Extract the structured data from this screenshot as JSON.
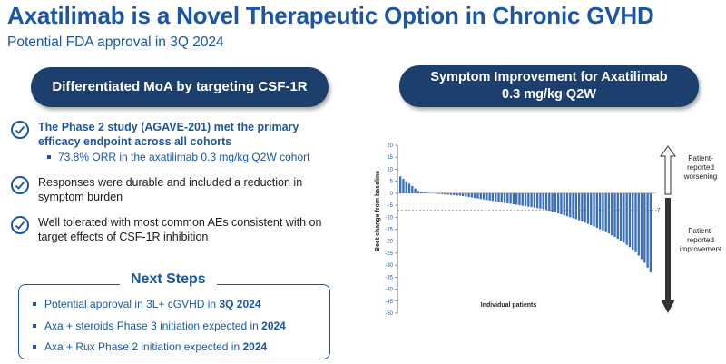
{
  "header": {
    "title": "Axatilimab is a Novel Therapeutic Option in Chronic GVHD",
    "subtitle": "Potential FDA approval in 3Q 2024"
  },
  "left_panel": {
    "pill": "Differentiated MoA by targeting CSF-1R",
    "bullets": [
      {
        "text": "The Phase 2 study (AGAVE-201) met the primary efficacy endpoint across all cohorts",
        "sub": "73.8% ORR in the axatilimab 0.3 mg/kg Q2W cohort"
      },
      {
        "text": "Responses were durable and included a reduction in symptom burden"
      },
      {
        "text": "Well tolerated with most common AEs consistent with on target effects of CSF-1R inhibition"
      }
    ]
  },
  "next_steps": {
    "title": "Next Steps",
    "items": [
      {
        "text": "Potential approval in 3L+ cGVHD in ",
        "bold": "3Q 2024"
      },
      {
        "text": "Axa + steroids Phase 3 initiation expected in ",
        "bold": "2024"
      },
      {
        "text": "Axa + Rux Phase 2 initiation expected in ",
        "bold": "2024"
      }
    ]
  },
  "right_panel": {
    "pill_line1": "Symptom Improvement for Axatilimab",
    "pill_line2": "0.3 mg/kg Q2W",
    "worsening_label": "Patient-reported worsening",
    "improvement_label": "Patient-reported improvement"
  },
  "chart_data": {
    "type": "bar",
    "title": "",
    "xlabel": "Individual patients",
    "ylabel": "Best change from baseline",
    "ylim": [
      -50,
      20
    ],
    "yticks": [
      20,
      15,
      10,
      5,
      0,
      -5,
      -10,
      -15,
      -20,
      -25,
      -30,
      -35,
      -40,
      -45,
      -50
    ],
    "reference_line": {
      "value": -7,
      "label": "-7"
    },
    "values": [
      7,
      6,
      5,
      4,
      3,
      2,
      1,
      0.5,
      0.3,
      0.2,
      0.1,
      0.1,
      -0.2,
      -0.3,
      -0.4,
      -0.5,
      -0.6,
      -0.7,
      -0.8,
      -1,
      -1,
      -1.2,
      -1.4,
      -1.6,
      -1.8,
      -2,
      -2.2,
      -2.4,
      -2.6,
      -2.8,
      -3,
      -3.2,
      -3.4,
      -3.6,
      -3.8,
      -4,
      -4.2,
      -4.4,
      -4.6,
      -4.8,
      -5,
      -5.2,
      -5.4,
      -5.6,
      -5.8,
      -6,
      -6.2,
      -6.4,
      -6.7,
      -7,
      -7.3,
      -7.6,
      -8,
      -8.4,
      -8.8,
      -9.2,
      -9.6,
      -10,
      -10.4,
      -10.8,
      -11.3,
      -11.8,
      -12.3,
      -12.8,
      -13.3,
      -13.8,
      -14.4,
      -15,
      -15.6,
      -16.2,
      -16.8,
      -17.5,
      -18.2,
      -19,
      -19.8,
      -20.6,
      -21.5,
      -22.5,
      -23.5,
      -24.6,
      -26,
      -27.5,
      -29,
      -31,
      -33
    ]
  }
}
